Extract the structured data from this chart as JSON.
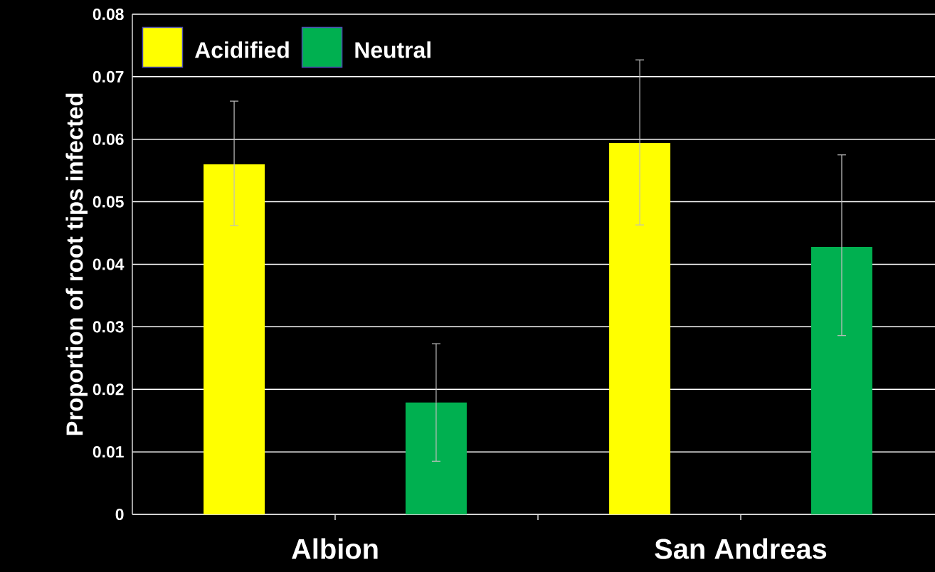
{
  "chart_data": {
    "type": "bar",
    "ylabel": "Proportion of root tips infected",
    "categories": [
      "Albion",
      "San Andreas"
    ],
    "series": [
      {
        "name": "Acidified",
        "color": "#ffff00",
        "values": [
          0.056,
          0.0594
        ],
        "errors": [
          [
            0.0462,
            0.0661
          ],
          [
            0.0463,
            0.0727
          ]
        ]
      },
      {
        "name": "Neutral",
        "color": "#00b050",
        "values": [
          0.0179,
          0.0428
        ],
        "errors": [
          [
            0.0085,
            0.0273
          ],
          [
            0.0286,
            0.0575
          ]
        ]
      }
    ],
    "ylim": [
      0,
      0.08
    ],
    "yticks": [
      0,
      0.01,
      0.02,
      0.03,
      0.04,
      0.05,
      0.06,
      0.07,
      0.08
    ],
    "grid": "y",
    "legend": "top left"
  }
}
